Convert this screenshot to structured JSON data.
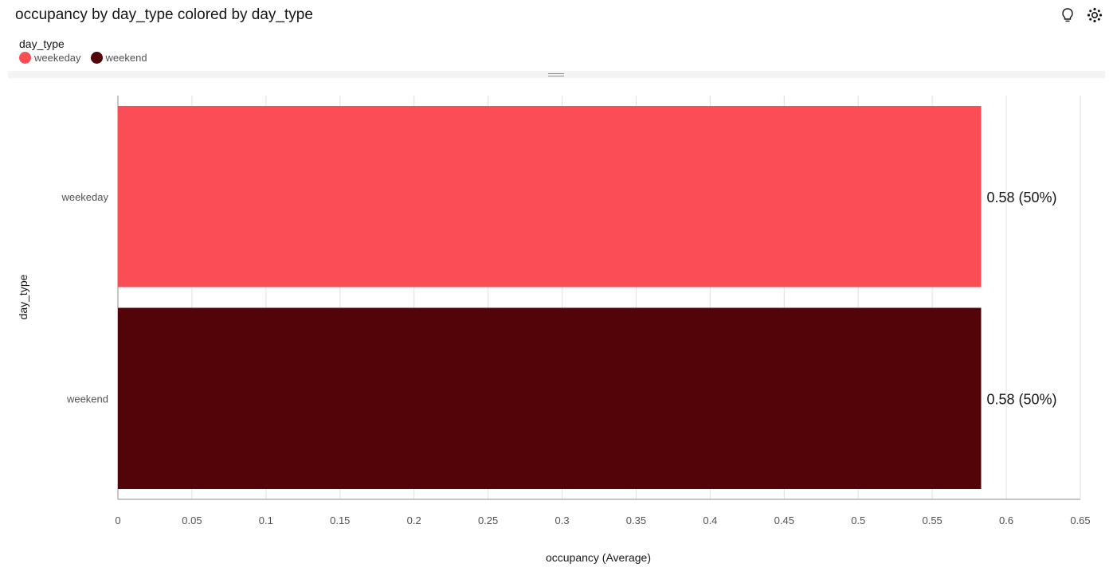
{
  "title": "occupancy by day_type colored by day_type",
  "icons": [
    "lightbulb-icon",
    "settings-icon"
  ],
  "legend": {
    "title": "day_type",
    "items": [
      {
        "label": "weekeday",
        "color": "#fa4d56"
      },
      {
        "label": "weekend",
        "color": "#520408"
      }
    ]
  },
  "chart_data": {
    "type": "bar",
    "orientation": "horizontal",
    "categories": [
      "weekeday",
      "weekend"
    ],
    "values": [
      0.583,
      0.583
    ],
    "data_labels": [
      "0.58 (50%)",
      "0.58 (50%)"
    ],
    "colors": [
      "#fa4d56",
      "#520408"
    ],
    "xlabel": "occupancy (Average)",
    "ylabel": "day_type",
    "xlim": [
      0,
      0.65
    ],
    "xticks": [
      "0",
      "0.05",
      "0.1",
      "0.15",
      "0.2",
      "0.25",
      "0.3",
      "0.35",
      "0.4",
      "0.45",
      "0.5",
      "0.55",
      "0.6",
      "0.65"
    ],
    "grid": true
  }
}
